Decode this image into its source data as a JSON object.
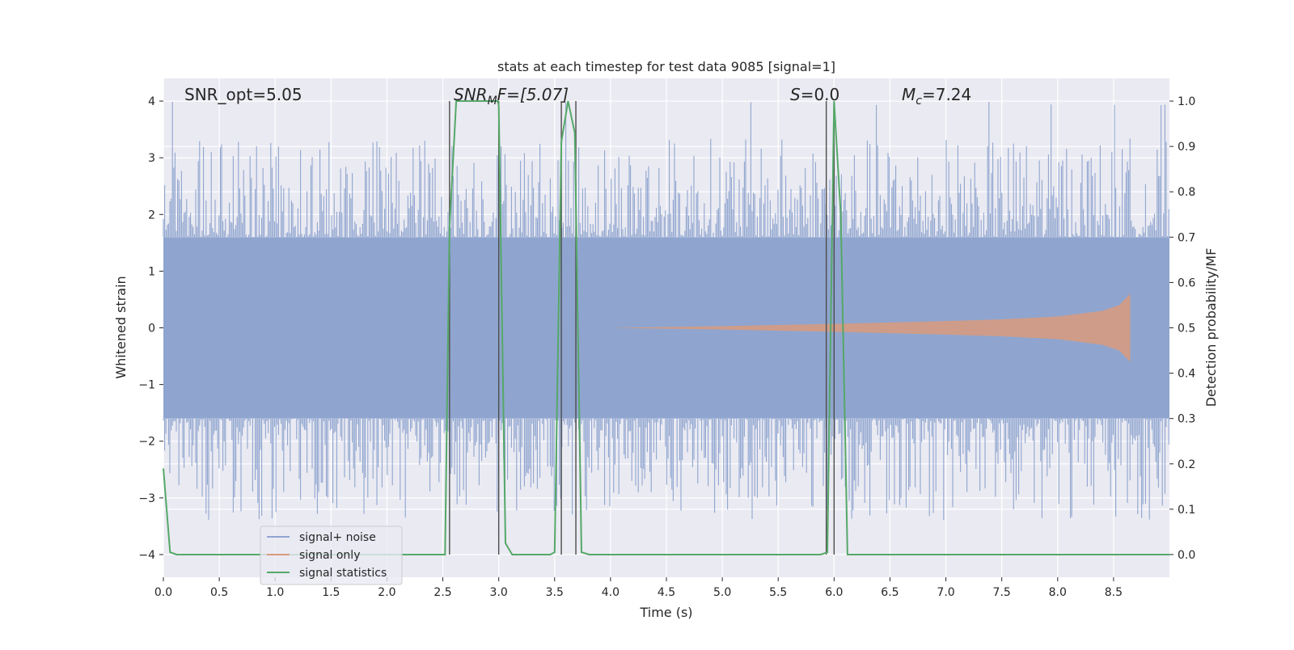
{
  "chart_data": {
    "type": "line",
    "title": "stats at each timestep for test data 9085 [signal=1]",
    "xlabel": "Time (s)",
    "ylabel_left": "Whitened strain",
    "ylabel_right": "Detection probability/MF",
    "xlim": [
      0.0,
      9.0
    ],
    "ylim_left": [
      -4.4,
      4.4
    ],
    "ylim_right": [
      -0.05,
      1.05
    ],
    "x_ticks": [
      "0.0",
      "0.5",
      "1.0",
      "1.5",
      "2.0",
      "2.5",
      "3.0",
      "3.5",
      "4.0",
      "4.5",
      "5.0",
      "5.5",
      "6.0",
      "6.5",
      "7.0",
      "7.5",
      "8.0",
      "8.5"
    ],
    "y_left_ticks": [
      "−4",
      "−3",
      "−2",
      "−1",
      "0",
      "1",
      "2",
      "3",
      "4"
    ],
    "y_right_ticks": [
      "0.0",
      "0.1",
      "0.2",
      "0.3",
      "0.4",
      "0.5",
      "0.6",
      "0.7",
      "0.8",
      "0.9",
      "1.0"
    ],
    "grid": true,
    "legend_position": "lower-left",
    "annotations": {
      "snr_opt": "SNR_opt=5.05",
      "snr_mf_sym": "SNR",
      "snr_mf_sub": "M",
      "snr_mf_rest": "F=[5.07]",
      "s_sym": "S",
      "s_rest": "=0.0",
      "mc_sym": "M",
      "mc_sub": "c",
      "mc_rest": "=7.24"
    },
    "vertical_lines_x": [
      2.56,
      3.0,
      3.56,
      3.69,
      5.93,
      6.0
    ],
    "series": [
      {
        "name": "signal+ noise",
        "color": "#8fa5cf",
        "axis": "left",
        "kind": "noise-band",
        "band_amplitude": 1.6,
        "spike_max": 4.0,
        "x_range": [
          0.0,
          9.0
        ]
      },
      {
        "name": "signal only",
        "color": "#d99a7c",
        "axis": "left",
        "kind": "chirp",
        "x_range": [
          4.0,
          8.65
        ],
        "envelope": [
          [
            4.0,
            0.0
          ],
          [
            5.0,
            0.03
          ],
          [
            6.0,
            0.07
          ],
          [
            7.0,
            0.12
          ],
          [
            7.5,
            0.15
          ],
          [
            8.0,
            0.2
          ],
          [
            8.4,
            0.3
          ],
          [
            8.55,
            0.4
          ],
          [
            8.65,
            0.6
          ]
        ]
      },
      {
        "name": "signal statistics",
        "color": "#55a868",
        "axis": "right",
        "x": [
          0.0,
          0.06,
          0.12,
          0.5,
          1.0,
          1.5,
          2.0,
          2.5,
          2.52,
          2.56,
          2.62,
          2.7,
          2.8,
          2.9,
          2.99,
          3.0,
          3.06,
          3.12,
          3.2,
          3.3,
          3.46,
          3.5,
          3.56,
          3.62,
          3.68,
          3.74,
          3.81,
          4.0,
          5.0,
          5.88,
          5.94,
          6.0,
          6.06,
          6.12,
          7.0,
          8.0,
          9.0
        ],
        "y": [
          0.19,
          0.005,
          0.0,
          0.0,
          0.0,
          0.0,
          0.0,
          0.0,
          0.0,
          0.72,
          1.0,
          1.0,
          1.0,
          1.0,
          1.0,
          0.99,
          0.025,
          0.0,
          0.0,
          0.0,
          0.0,
          0.005,
          0.91,
          1.0,
          0.93,
          0.005,
          0.0,
          0.0,
          0.0,
          0.0,
          0.005,
          1.0,
          0.75,
          0.0,
          0.0,
          0.0,
          0.0
        ]
      }
    ]
  }
}
